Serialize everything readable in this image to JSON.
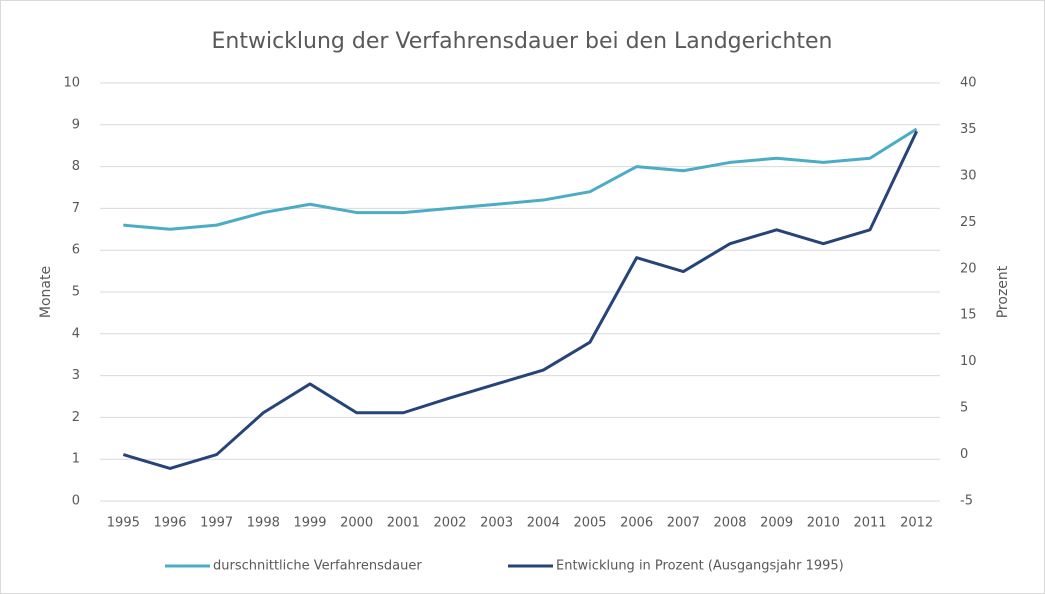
{
  "chart_data": {
    "type": "line",
    "title": "Entwicklung der Verfahrensdauer bei den Landgerichten",
    "ylabel": "Monate",
    "y2label": "Prozent",
    "categories": [
      "1995",
      "1996",
      "1997",
      "1998",
      "1999",
      "2000",
      "2001",
      "2002",
      "2003",
      "2004",
      "2005",
      "2006",
      "2007",
      "2008",
      "2009",
      "2010",
      "2011",
      "2012"
    ],
    "series": [
      {
        "name": "durschnittliche Verfahrensdauer",
        "color": "#4bacc6",
        "axis": "y",
        "values": [
          6.6,
          6.5,
          6.6,
          6.9,
          7.1,
          6.9,
          6.9,
          7.0,
          7.1,
          7.2,
          7.4,
          8.0,
          7.9,
          8.1,
          8.2,
          8.1,
          8.2,
          8.9
        ]
      },
      {
        "name": "Entwicklung in Prozent (Ausgangsjahr 1995)",
        "color": "#264478",
        "axis": "y2",
        "values": [
          0,
          -1.5,
          0,
          4.5,
          7.6,
          4.5,
          4.5,
          6.1,
          7.6,
          9.1,
          12.1,
          21.2,
          19.7,
          22.7,
          24.2,
          22.7,
          24.2,
          34.8
        ]
      }
    ],
    "ylim": [
      0,
      10
    ],
    "yticks": [
      0,
      1,
      2,
      3,
      4,
      5,
      6,
      7,
      8,
      9,
      10
    ],
    "y2lim": [
      -5,
      40
    ],
    "y2ticks": [
      -5,
      0,
      5,
      10,
      15,
      20,
      25,
      30,
      35,
      40
    ],
    "grid": true,
    "legend": "bottom"
  }
}
